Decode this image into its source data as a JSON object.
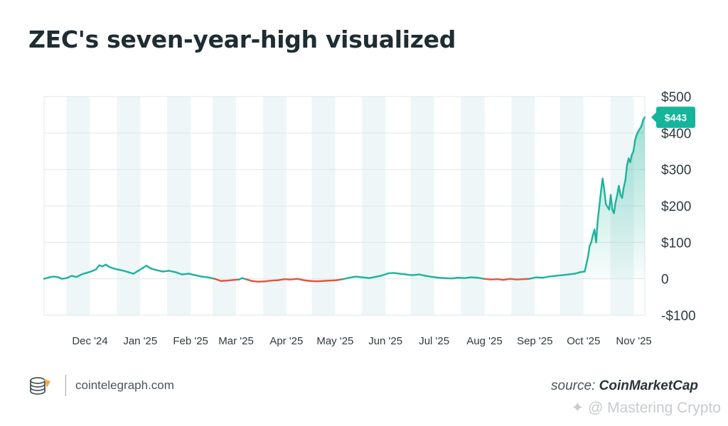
{
  "title": "ZEC's seven-year-high visualized",
  "footer": {
    "site": "cointelegraph.com",
    "source_prefix": "source:",
    "source_name": "CoinMarketCap"
  },
  "watermark": "✦ @ Mastering Crypto",
  "colors": {
    "up": "#1bb39a",
    "down": "#e0553e",
    "band": "#eef6f7",
    "grid": "#dfe8ea",
    "badge": "#14b59b"
  },
  "chart_data": {
    "type": "line",
    "title": "ZEC's seven-year-high visualized",
    "xlabel": "",
    "ylabel": "",
    "y_axis_position": "right",
    "ylim": [
      -100,
      500
    ],
    "y_ticks": [
      500,
      400,
      300,
      200,
      100,
      0,
      -100
    ],
    "y_tick_labels": [
      "$500",
      "$400",
      "$300",
      "$200",
      "$100",
      "0",
      "-$100"
    ],
    "x_range": [
      "2024-11-01",
      "2025-11-06"
    ],
    "x_ticks": [
      "2024-12-01",
      "2025-01-01",
      "2025-02-01",
      "2025-03-01",
      "2025-04-01",
      "2025-05-01",
      "2025-06-01",
      "2025-07-01",
      "2025-08-01",
      "2025-09-01",
      "2025-10-01",
      "2025-11-01"
    ],
    "x_tick_labels": [
      "Dec '24",
      "Jan '25",
      "Feb '25",
      "Mar '25",
      "Apr '25",
      "May '25",
      "Jun '25",
      "Jul '25",
      "Aug '25",
      "Sep '25",
      "Oct '25",
      "Nov '25"
    ],
    "current_value_label": "$443",
    "series": [
      {
        "points": [
          [
            "2024-11-01",
            0
          ],
          [
            "2024-11-04",
            4
          ],
          [
            "2024-11-07",
            6
          ],
          [
            "2024-11-10",
            4
          ],
          [
            "2024-11-12",
            0
          ],
          [
            "2024-11-15",
            2
          ],
          [
            "2024-11-18",
            8
          ],
          [
            "2024-11-21",
            5
          ],
          [
            "2024-11-24",
            12
          ],
          [
            "2024-11-27",
            16
          ],
          [
            "2024-11-30",
            20
          ],
          [
            "2024-12-03",
            26
          ],
          [
            "2024-12-05",
            37
          ],
          [
            "2024-12-07",
            34
          ],
          [
            "2024-12-09",
            39
          ],
          [
            "2024-12-11",
            33
          ],
          [
            "2024-12-14",
            28
          ],
          [
            "2024-12-17",
            25
          ],
          [
            "2024-12-20",
            22
          ],
          [
            "2024-12-23",
            18
          ],
          [
            "2024-12-26",
            14
          ],
          [
            "2024-12-29",
            22
          ],
          [
            "2025-01-01",
            30
          ],
          [
            "2025-01-03",
            36
          ],
          [
            "2025-01-06",
            28
          ],
          [
            "2025-01-09",
            24
          ],
          [
            "2025-01-13",
            20
          ],
          [
            "2025-01-17",
            22
          ],
          [
            "2025-01-21",
            18
          ],
          [
            "2025-01-25",
            12
          ],
          [
            "2025-01-29",
            14
          ],
          [
            "2025-02-02",
            10
          ],
          [
            "2025-02-06",
            6
          ],
          [
            "2025-02-10",
            4
          ],
          [
            "2025-02-14",
            0
          ],
          [
            "2025-02-18",
            -6
          ],
          [
            "2025-02-22",
            -5
          ],
          [
            "2025-02-26",
            -3
          ],
          [
            "2025-03-01",
            -2
          ],
          [
            "2025-03-03",
            2
          ],
          [
            "2025-03-06",
            -2
          ],
          [
            "2025-03-09",
            -6
          ],
          [
            "2025-03-13",
            -8
          ],
          [
            "2025-03-17",
            -7
          ],
          [
            "2025-03-21",
            -5
          ],
          [
            "2025-03-25",
            -4
          ],
          [
            "2025-03-29",
            -1
          ],
          [
            "2025-04-02",
            -2
          ],
          [
            "2025-04-06",
            0
          ],
          [
            "2025-04-10",
            -4
          ],
          [
            "2025-04-14",
            -6
          ],
          [
            "2025-04-18",
            -7
          ],
          [
            "2025-04-22",
            -6
          ],
          [
            "2025-04-26",
            -5
          ],
          [
            "2025-04-30",
            -4
          ],
          [
            "2025-05-04",
            -1
          ],
          [
            "2025-05-08",
            3
          ],
          [
            "2025-05-12",
            6
          ],
          [
            "2025-05-16",
            4
          ],
          [
            "2025-05-20",
            2
          ],
          [
            "2025-05-24",
            5
          ],
          [
            "2025-05-28",
            9
          ],
          [
            "2025-06-01",
            15
          ],
          [
            "2025-06-04",
            16
          ],
          [
            "2025-06-08",
            14
          ],
          [
            "2025-06-12",
            12
          ],
          [
            "2025-06-16",
            10
          ],
          [
            "2025-06-20",
            12
          ],
          [
            "2025-06-24",
            8
          ],
          [
            "2025-06-28",
            5
          ],
          [
            "2025-07-02",
            3
          ],
          [
            "2025-07-06",
            2
          ],
          [
            "2025-07-10",
            1
          ],
          [
            "2025-07-14",
            3
          ],
          [
            "2025-07-18",
            2
          ],
          [
            "2025-07-22",
            4
          ],
          [
            "2025-07-26",
            3
          ],
          [
            "2025-07-30",
            0
          ],
          [
            "2025-08-03",
            -2
          ],
          [
            "2025-08-07",
            -1
          ],
          [
            "2025-08-11",
            -3
          ],
          [
            "2025-08-15",
            0
          ],
          [
            "2025-08-19",
            -2
          ],
          [
            "2025-08-23",
            -1
          ],
          [
            "2025-08-27",
            0
          ],
          [
            "2025-08-31",
            4
          ],
          [
            "2025-09-04",
            3
          ],
          [
            "2025-09-08",
            6
          ],
          [
            "2025-09-12",
            8
          ],
          [
            "2025-09-16",
            10
          ],
          [
            "2025-09-20",
            12
          ],
          [
            "2025-09-24",
            14
          ],
          [
            "2025-09-27",
            18
          ],
          [
            "2025-09-30",
            20
          ],
          [
            "2025-10-01",
            40
          ],
          [
            "2025-10-02",
            60
          ],
          [
            "2025-10-03",
            90
          ],
          [
            "2025-10-04",
            100
          ],
          [
            "2025-10-05",
            120
          ],
          [
            "2025-10-06",
            135
          ],
          [
            "2025-10-07",
            100
          ],
          [
            "2025-10-08",
            160
          ],
          [
            "2025-10-09",
            200
          ],
          [
            "2025-10-10",
            240
          ],
          [
            "2025-10-11",
            275
          ],
          [
            "2025-10-12",
            245
          ],
          [
            "2025-10-13",
            205
          ],
          [
            "2025-10-15",
            190
          ],
          [
            "2025-10-16",
            230
          ],
          [
            "2025-10-17",
            190
          ],
          [
            "2025-10-18",
            180
          ],
          [
            "2025-10-19",
            210
          ],
          [
            "2025-10-20",
            230
          ],
          [
            "2025-10-21",
            255
          ],
          [
            "2025-10-22",
            230
          ],
          [
            "2025-10-23",
            222
          ],
          [
            "2025-10-24",
            250
          ],
          [
            "2025-10-25",
            270
          ],
          [
            "2025-10-26",
            310
          ],
          [
            "2025-10-27",
            330
          ],
          [
            "2025-10-28",
            320
          ],
          [
            "2025-10-29",
            340
          ],
          [
            "2025-10-30",
            350
          ],
          [
            "2025-10-31",
            380
          ],
          [
            "2025-11-01",
            395
          ],
          [
            "2025-11-02",
            405
          ],
          [
            "2025-11-03",
            412
          ],
          [
            "2025-11-04",
            420
          ],
          [
            "2025-11-05",
            436
          ],
          [
            "2025-11-06",
            443
          ]
        ]
      }
    ]
  }
}
